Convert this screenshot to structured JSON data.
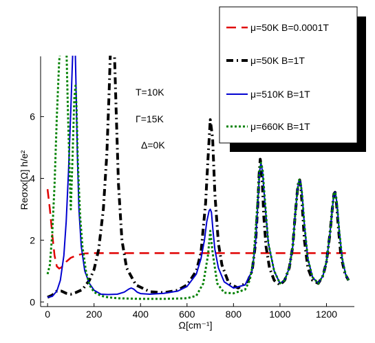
{
  "chart_data": {
    "type": "line",
    "xlabel": "Ω[cm⁻¹]",
    "ylabel": "Reσxx[Ω] h/e²",
    "xlim": [
      -30,
      1320
    ],
    "ylim": [
      -0.15,
      7.95
    ],
    "xticks": [
      0,
      200,
      400,
      600,
      800,
      1000,
      1200
    ],
    "yticks": [
      0,
      2,
      4,
      6
    ],
    "grid": false,
    "legend_placement": "top-right",
    "annotations": [
      "T=10K",
      "Γ=15K",
      "Δ=0K"
    ],
    "series": [
      {
        "name": "μ=50K  B=0.0001T",
        "color": "#e00000",
        "dash": "long-dash",
        "x": [
          0,
          10,
          20,
          30,
          40,
          50,
          60,
          80,
          100,
          130,
          160,
          200,
          300,
          400,
          600,
          800,
          1000,
          1200,
          1290
        ],
        "y": [
          3.65,
          3.0,
          2.2,
          1.5,
          1.15,
          1.08,
          1.12,
          1.3,
          1.43,
          1.52,
          1.57,
          1.58,
          1.58,
          1.58,
          1.58,
          1.58,
          1.58,
          1.58,
          1.58
        ]
      },
      {
        "name": "μ=50K  B=1T",
        "color": "#000000",
        "dash": "dash-dot",
        "x": [
          0,
          20,
          40,
          60,
          80,
          100,
          120,
          150,
          180,
          200,
          220,
          240,
          255,
          265,
          272,
          280,
          288,
          295,
          305,
          320,
          340,
          380,
          440,
          500,
          560,
          600,
          640,
          660,
          680,
          690,
          700,
          710,
          720,
          735,
          750,
          780,
          820,
          860,
          880,
          895,
          905,
          910,
          915,
          920,
          925,
          930,
          940,
          955,
          975,
          1000,
          1020,
          1040,
          1055,
          1065,
          1075,
          1080,
          1085,
          1090,
          1095,
          1105,
          1120,
          1140,
          1165,
          1185,
          1200,
          1215,
          1225,
          1232,
          1237,
          1242,
          1250,
          1262,
          1280,
          1295
        ],
        "y": [
          0.15,
          0.22,
          0.35,
          0.35,
          0.28,
          0.25,
          0.3,
          0.4,
          0.7,
          1.05,
          1.7,
          3.0,
          4.8,
          6.8,
          8.5,
          8.5,
          8.0,
          6.2,
          3.8,
          2.0,
          1.1,
          0.55,
          0.33,
          0.3,
          0.38,
          0.55,
          1.0,
          1.6,
          3.2,
          4.6,
          5.9,
          5.3,
          3.5,
          1.9,
          1.2,
          0.6,
          0.45,
          0.65,
          1.0,
          1.9,
          3.2,
          4.1,
          4.62,
          4.4,
          3.7,
          2.8,
          1.8,
          1.1,
          0.7,
          0.55,
          0.7,
          1.1,
          1.8,
          2.8,
          3.6,
          3.9,
          3.95,
          3.7,
          3.2,
          2.0,
          1.1,
          0.7,
          0.6,
          0.85,
          1.3,
          2.2,
          3.0,
          3.5,
          3.55,
          3.3,
          2.5,
          1.5,
          0.9,
          0.7
        ]
      },
      {
        "name": "μ=510K  B=1T",
        "color": "#0000d0",
        "dash": "solid",
        "x": [
          0,
          20,
          40,
          55,
          70,
          80,
          90,
          100,
          108,
          114,
          118,
          122,
          128,
          135,
          145,
          160,
          180,
          200,
          230,
          260,
          300,
          330,
          350,
          360,
          370,
          385,
          400,
          440,
          500,
          560,
          600,
          640,
          660,
          675,
          685,
          695,
          700,
          705,
          712,
          720,
          735,
          760,
          800,
          850,
          880,
          895,
          905,
          912,
          918,
          925,
          935,
          950,
          975,
          1000,
          1020,
          1040,
          1055,
          1065,
          1075,
          1082,
          1088,
          1095,
          1105,
          1120,
          1140,
          1165,
          1185,
          1200,
          1215,
          1225,
          1232,
          1238,
          1245,
          1255,
          1268,
          1282,
          1295
        ],
        "y": [
          0.15,
          0.18,
          0.35,
          0.7,
          1.5,
          2.6,
          4.2,
          6.2,
          8.0,
          8.5,
          8.5,
          7.2,
          4.8,
          3.0,
          1.8,
          1.0,
          0.6,
          0.38,
          0.25,
          0.24,
          0.25,
          0.32,
          0.42,
          0.45,
          0.42,
          0.32,
          0.27,
          0.25,
          0.28,
          0.35,
          0.5,
          0.9,
          1.4,
          2.0,
          2.6,
          2.95,
          3.0,
          2.9,
          2.3,
          1.7,
          1.1,
          0.65,
          0.45,
          0.55,
          1.0,
          1.9,
          3.2,
          4.2,
          4.5,
          4.2,
          3.2,
          1.9,
          1.0,
          0.6,
          0.7,
          1.1,
          1.8,
          2.8,
          3.6,
          3.95,
          3.9,
          3.5,
          2.5,
          1.4,
          0.8,
          0.6,
          0.85,
          1.3,
          2.2,
          3.0,
          3.5,
          3.55,
          3.2,
          2.3,
          1.4,
          0.9,
          0.7
        ]
      },
      {
        "name": "μ=660K  B=1T",
        "color": "#008000",
        "dash": "dotted",
        "x": [
          0,
          10,
          20,
          30,
          40,
          50,
          60,
          70,
          78,
          82,
          88,
          95,
          100,
          108,
          115,
          120,
          125,
          130,
          140,
          150,
          165,
          180,
          200,
          230,
          260,
          300,
          400,
          500,
          600,
          640,
          670,
          690,
          700,
          710,
          730,
          760,
          800,
          850,
          870,
          885,
          895,
          905,
          912,
          918,
          925,
          935,
          950,
          975,
          1000,
          1020,
          1040,
          1055,
          1065,
          1075,
          1082,
          1088,
          1095,
          1105,
          1120,
          1140,
          1165,
          1185,
          1200,
          1215,
          1225,
          1232,
          1238,
          1245,
          1255,
          1268,
          1282,
          1295
        ],
        "y": [
          0.9,
          1.2,
          2.2,
          3.8,
          6.0,
          7.8,
          8.5,
          8.5,
          8.5,
          8.0,
          6.0,
          4.2,
          3.0,
          4.8,
          6.6,
          7.0,
          6.2,
          4.6,
          2.8,
          1.8,
          1.0,
          0.55,
          0.32,
          0.2,
          0.15,
          0.12,
          0.1,
          0.1,
          0.12,
          0.2,
          0.6,
          1.5,
          2.3,
          1.6,
          0.6,
          0.3,
          0.28,
          0.4,
          0.7,
          1.3,
          2.3,
          3.4,
          4.3,
          4.5,
          4.3,
          3.3,
          1.9,
          1.0,
          0.6,
          0.7,
          1.1,
          1.8,
          2.8,
          3.6,
          3.95,
          3.9,
          3.5,
          2.5,
          1.4,
          0.8,
          0.6,
          0.85,
          1.3,
          2.2,
          3.0,
          3.5,
          3.55,
          3.2,
          2.3,
          1.4,
          0.9,
          0.7
        ]
      }
    ]
  }
}
